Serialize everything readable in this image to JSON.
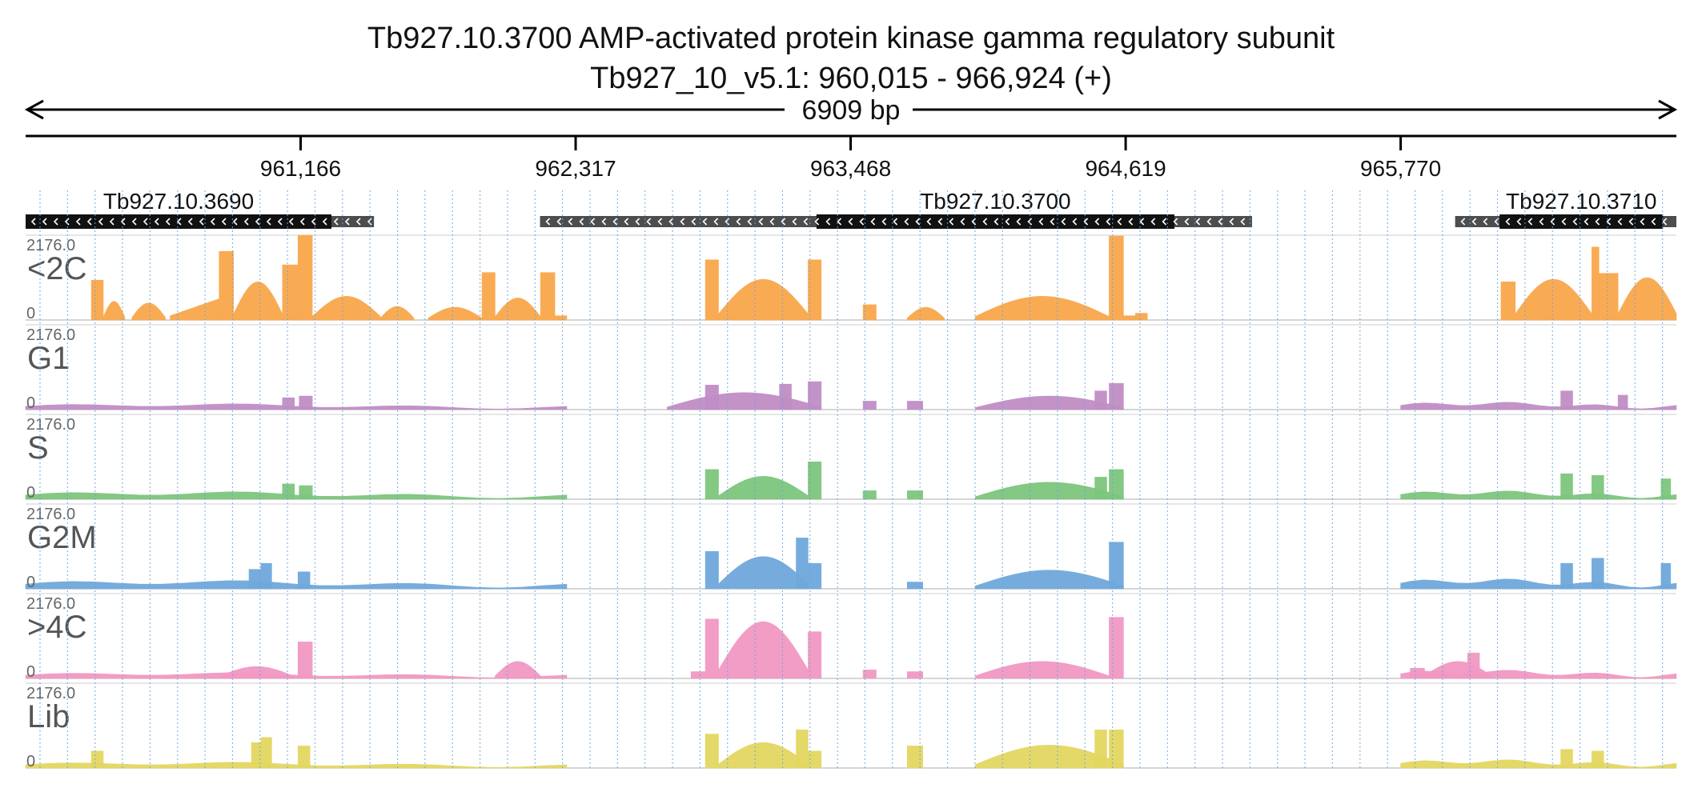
{
  "header": {
    "title_line1": "Tb927.10.3700  AMP-activated protein kinase  gamma regulatory subunit",
    "title_line2": "Tb927_10_v5.1: 960,015 - 966,924 (+)"
  },
  "chart_data": {
    "type": "area",
    "chromosome": "Tb927_10_v5.1",
    "region": {
      "start": 960015,
      "end": 966924,
      "strand": "+"
    },
    "span_label": "6909 bp",
    "ticks": [
      {
        "pos": 961166,
        "label": "961,166"
      },
      {
        "pos": 962317,
        "label": "962,317"
      },
      {
        "pos": 963468,
        "label": "963,468"
      },
      {
        "pos": 964619,
        "label": "964,619"
      },
      {
        "pos": 965770,
        "label": "965,770"
      }
    ],
    "genes": [
      {
        "name": "Tb927.10.3690",
        "strand": "-",
        "utr": [
          960015,
          961473
        ],
        "cds": [
          960015,
          961295
        ]
      },
      {
        "name": "Tb927.10.3700",
        "strand": "-",
        "utr": [
          962168,
          965148
        ],
        "cds": [
          963325,
          964823
        ]
      },
      {
        "name": "Tb927.10.3710",
        "strand": "-",
        "utr": [
          965998,
          966924
        ],
        "cds": [
          966184,
          966868
        ]
      }
    ],
    "tracks": [
      {
        "name": "<2C",
        "ymax": "2176.0",
        "ymin": "0",
        "color": "#f9a74b",
        "segments": [
          {
            "start": 960290,
            "end": 960340,
            "shape": "block",
            "height": 0.47
          },
          {
            "start": 960340,
            "end": 960430,
            "shape": "hump",
            "height": 0.22
          },
          {
            "start": 960460,
            "end": 960600,
            "shape": "hump",
            "height": 0.2
          },
          {
            "start": 960620,
            "end": 960825,
            "shape": "ramp",
            "height": 0.25
          },
          {
            "start": 960825,
            "end": 960885,
            "shape": "block",
            "height": 0.81
          },
          {
            "start": 960885,
            "end": 961090,
            "shape": "hump",
            "height": 0.45
          },
          {
            "start": 961090,
            "end": 961155,
            "shape": "block",
            "height": 0.65
          },
          {
            "start": 961155,
            "end": 961215,
            "shape": "block",
            "height": 1.0
          },
          {
            "start": 961215,
            "end": 961500,
            "shape": "hump",
            "height": 0.28
          },
          {
            "start": 961500,
            "end": 961640,
            "shape": "hump",
            "height": 0.16
          },
          {
            "start": 961700,
            "end": 961925,
            "shape": "hump",
            "height": 0.15
          },
          {
            "start": 961925,
            "end": 961980,
            "shape": "block",
            "height": 0.56
          },
          {
            "start": 961980,
            "end": 962170,
            "shape": "hump",
            "height": 0.26
          },
          {
            "start": 962170,
            "end": 962230,
            "shape": "block",
            "height": 0.56
          },
          {
            "start": 962230,
            "end": 962280,
            "shape": "block",
            "height": 0.05
          },
          {
            "start": 962860,
            "end": 962915,
            "shape": "block",
            "height": 0.71
          },
          {
            "start": 962915,
            "end": 963290,
            "shape": "hump",
            "height": 0.48
          },
          {
            "start": 963290,
            "end": 963345,
            "shape": "block",
            "height": 0.71
          },
          {
            "start": 963520,
            "end": 963575,
            "shape": "block",
            "height": 0.18
          },
          {
            "start": 963705,
            "end": 963860,
            "shape": "hump",
            "height": 0.15
          },
          {
            "start": 963990,
            "end": 964550,
            "shape": "hump",
            "height": 0.28
          },
          {
            "start": 964550,
            "end": 964610,
            "shape": "block",
            "height": 0.99
          },
          {
            "start": 964610,
            "end": 964660,
            "shape": "block",
            "height": 0.05
          },
          {
            "start": 964660,
            "end": 964710,
            "shape": "block",
            "height": 0.08
          },
          {
            "start": 966190,
            "end": 966250,
            "shape": "block",
            "height": 0.45
          },
          {
            "start": 966250,
            "end": 966570,
            "shape": "hump",
            "height": 0.48
          },
          {
            "start": 966570,
            "end": 966600,
            "shape": "block",
            "height": 0.86
          },
          {
            "start": 966600,
            "end": 966680,
            "shape": "block",
            "height": 0.55
          },
          {
            "start": 966680,
            "end": 966924,
            "shape": "hump",
            "height": 0.5
          }
        ]
      },
      {
        "name": "G1",
        "ymax": "2176.0",
        "ymin": "0",
        "color": "#c08ec6",
        "segments": [
          {
            "start": 960015,
            "end": 962280,
            "shape": "wave",
            "height": 0.07
          },
          {
            "start": 961090,
            "end": 961140,
            "shape": "block",
            "height": 0.14
          },
          {
            "start": 961160,
            "end": 961215,
            "shape": "block",
            "height": 0.16
          },
          {
            "start": 962700,
            "end": 963345,
            "shape": "hump",
            "height": 0.2
          },
          {
            "start": 962860,
            "end": 962915,
            "shape": "block",
            "height": 0.29
          },
          {
            "start": 963170,
            "end": 963220,
            "shape": "block",
            "height": 0.3
          },
          {
            "start": 963290,
            "end": 963345,
            "shape": "block",
            "height": 0.33
          },
          {
            "start": 963520,
            "end": 963575,
            "shape": "block",
            "height": 0.1
          },
          {
            "start": 963705,
            "end": 963770,
            "shape": "block",
            "height": 0.1
          },
          {
            "start": 963990,
            "end": 964610,
            "shape": "hump",
            "height": 0.16
          },
          {
            "start": 964490,
            "end": 964540,
            "shape": "block",
            "height": 0.22
          },
          {
            "start": 964550,
            "end": 964610,
            "shape": "block",
            "height": 0.31
          },
          {
            "start": 965770,
            "end": 966924,
            "shape": "wave",
            "height": 0.09
          },
          {
            "start": 966440,
            "end": 966490,
            "shape": "block",
            "height": 0.22
          },
          {
            "start": 966680,
            "end": 966720,
            "shape": "block",
            "height": 0.17
          }
        ]
      },
      {
        "name": "S",
        "ymax": "2176.0",
        "ymin": "0",
        "color": "#7dc67d",
        "segments": [
          {
            "start": 960015,
            "end": 962280,
            "shape": "wave",
            "height": 0.09
          },
          {
            "start": 961090,
            "end": 961140,
            "shape": "block",
            "height": 0.18
          },
          {
            "start": 961160,
            "end": 961215,
            "shape": "block",
            "height": 0.16
          },
          {
            "start": 962860,
            "end": 962915,
            "shape": "block",
            "height": 0.35
          },
          {
            "start": 962915,
            "end": 963290,
            "shape": "hump",
            "height": 0.27
          },
          {
            "start": 963290,
            "end": 963345,
            "shape": "block",
            "height": 0.44
          },
          {
            "start": 963520,
            "end": 963575,
            "shape": "block",
            "height": 0.1
          },
          {
            "start": 963705,
            "end": 963770,
            "shape": "block",
            "height": 0.1
          },
          {
            "start": 963990,
            "end": 964610,
            "shape": "hump",
            "height": 0.2
          },
          {
            "start": 964490,
            "end": 964540,
            "shape": "block",
            "height": 0.26
          },
          {
            "start": 964550,
            "end": 964610,
            "shape": "block",
            "height": 0.35
          },
          {
            "start": 965770,
            "end": 966924,
            "shape": "wave",
            "height": 0.1
          },
          {
            "start": 966440,
            "end": 966490,
            "shape": "block",
            "height": 0.3
          },
          {
            "start": 966570,
            "end": 966620,
            "shape": "block",
            "height": 0.28
          },
          {
            "start": 966860,
            "end": 966900,
            "shape": "block",
            "height": 0.24
          }
        ]
      },
      {
        "name": "G2M",
        "ymax": "2176.0",
        "ymin": "0",
        "color": "#6fa8dc",
        "segments": [
          {
            "start": 960015,
            "end": 962280,
            "shape": "wave",
            "height": 0.1
          },
          {
            "start": 960950,
            "end": 961000,
            "shape": "block",
            "height": 0.23
          },
          {
            "start": 961000,
            "end": 961045,
            "shape": "block",
            "height": 0.3
          },
          {
            "start": 961155,
            "end": 961205,
            "shape": "block",
            "height": 0.2
          },
          {
            "start": 962860,
            "end": 962915,
            "shape": "block",
            "height": 0.44
          },
          {
            "start": 962915,
            "end": 963290,
            "shape": "hump",
            "height": 0.38
          },
          {
            "start": 963240,
            "end": 963290,
            "shape": "block",
            "height": 0.6
          },
          {
            "start": 963290,
            "end": 963345,
            "shape": "block",
            "height": 0.3
          },
          {
            "start": 963705,
            "end": 963770,
            "shape": "block",
            "height": 0.08
          },
          {
            "start": 963990,
            "end": 964610,
            "shape": "hump",
            "height": 0.22
          },
          {
            "start": 964550,
            "end": 964610,
            "shape": "block",
            "height": 0.55
          },
          {
            "start": 965770,
            "end": 966924,
            "shape": "wave",
            "height": 0.12
          },
          {
            "start": 966440,
            "end": 966490,
            "shape": "block",
            "height": 0.3
          },
          {
            "start": 966570,
            "end": 966620,
            "shape": "block",
            "height": 0.36
          },
          {
            "start": 966860,
            "end": 966900,
            "shape": "block",
            "height": 0.3
          }
        ]
      },
      {
        "name": ">4C",
        "ymax": "2176.0",
        "ymin": "0",
        "color": "#f198c4",
        "segments": [
          {
            "start": 960015,
            "end": 962280,
            "shape": "wave",
            "height": 0.07
          },
          {
            "start": 960825,
            "end": 961140,
            "shape": "hump",
            "height": 0.14
          },
          {
            "start": 961155,
            "end": 961215,
            "shape": "block",
            "height": 0.43
          },
          {
            "start": 961980,
            "end": 962170,
            "shape": "hump",
            "height": 0.2
          },
          {
            "start": 962800,
            "end": 962860,
            "shape": "block",
            "height": 0.08
          },
          {
            "start": 962860,
            "end": 962915,
            "shape": "block",
            "height": 0.7
          },
          {
            "start": 962915,
            "end": 963290,
            "shape": "hump",
            "height": 0.67
          },
          {
            "start": 963290,
            "end": 963345,
            "shape": "block",
            "height": 0.55
          },
          {
            "start": 963520,
            "end": 963575,
            "shape": "block",
            "height": 0.1
          },
          {
            "start": 963705,
            "end": 963770,
            "shape": "block",
            "height": 0.08
          },
          {
            "start": 963990,
            "end": 964550,
            "shape": "hump",
            "height": 0.2
          },
          {
            "start": 964550,
            "end": 964610,
            "shape": "block",
            "height": 0.72
          },
          {
            "start": 965770,
            "end": 966924,
            "shape": "wave",
            "height": 0.1
          },
          {
            "start": 965810,
            "end": 965870,
            "shape": "block",
            "height": 0.12
          },
          {
            "start": 965870,
            "end": 966150,
            "shape": "hump",
            "height": 0.2
          },
          {
            "start": 966050,
            "end": 966100,
            "shape": "block",
            "height": 0.3
          }
        ]
      },
      {
        "name": "Lib",
        "ymax": "2176.0",
        "ymin": "0",
        "color": "#e3d760",
        "segments": [
          {
            "start": 960015,
            "end": 962280,
            "shape": "wave",
            "height": 0.07
          },
          {
            "start": 960290,
            "end": 960340,
            "shape": "block",
            "height": 0.2
          },
          {
            "start": 960960,
            "end": 961000,
            "shape": "block",
            "height": 0.3
          },
          {
            "start": 961000,
            "end": 961045,
            "shape": "block",
            "height": 0.36
          },
          {
            "start": 961155,
            "end": 961205,
            "shape": "block",
            "height": 0.26
          },
          {
            "start": 962860,
            "end": 962915,
            "shape": "block",
            "height": 0.4
          },
          {
            "start": 962915,
            "end": 963290,
            "shape": "hump",
            "height": 0.3
          },
          {
            "start": 963240,
            "end": 963290,
            "shape": "block",
            "height": 0.45
          },
          {
            "start": 963290,
            "end": 963345,
            "shape": "block",
            "height": 0.2
          },
          {
            "start": 963705,
            "end": 963770,
            "shape": "block",
            "height": 0.26
          },
          {
            "start": 963990,
            "end": 964610,
            "shape": "hump",
            "height": 0.27
          },
          {
            "start": 964490,
            "end": 964540,
            "shape": "block",
            "height": 0.45
          },
          {
            "start": 964550,
            "end": 964610,
            "shape": "block",
            "height": 0.45
          },
          {
            "start": 965770,
            "end": 966924,
            "shape": "wave",
            "height": 0.1
          },
          {
            "start": 966440,
            "end": 966490,
            "shape": "block",
            "height": 0.22
          },
          {
            "start": 966570,
            "end": 966620,
            "shape": "block",
            "height": 0.2
          }
        ]
      }
    ]
  }
}
